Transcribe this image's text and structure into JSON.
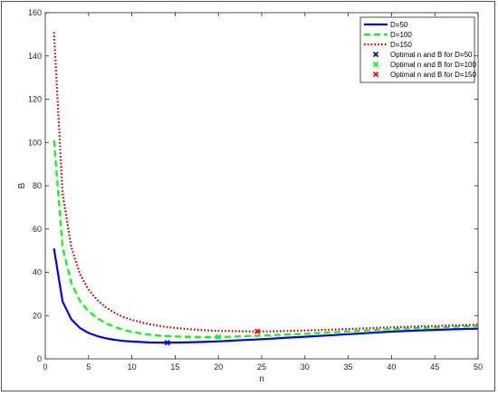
{
  "chart_data": {
    "type": "line",
    "xlabel": "n",
    "ylabel": "B",
    "xlim": [
      0,
      50
    ],
    "ylim": [
      0,
      160
    ],
    "xticks": [
      0,
      5,
      10,
      15,
      20,
      25,
      30,
      35,
      40,
      45,
      50
    ],
    "yticks": [
      0,
      20,
      40,
      60,
      80,
      100,
      120,
      140,
      160
    ],
    "grid": false,
    "legend_position": "top-right",
    "x": [
      1,
      2,
      3,
      4,
      5,
      6,
      7,
      8,
      9,
      10,
      12,
      14,
      16,
      18,
      20,
      22,
      24,
      26,
      28,
      30,
      35,
      40,
      45,
      50
    ],
    "series": [
      {
        "name": "D=50",
        "color": "#0000ff",
        "style": "solid",
        "values": [
          51,
          26.5,
          18.3,
          14.3,
          12,
          10.5,
          9.5,
          8.8,
          8.3,
          8,
          7.6,
          7.5,
          7.6,
          7.8,
          8.1,
          8.5,
          8.9,
          9.3,
          9.8,
          10.2,
          11.4,
          12.6,
          13.4,
          14
        ]
      },
      {
        "name": "D=100",
        "color": "#00ff00",
        "style": "dashed",
        "values": [
          101,
          51.5,
          35,
          26.8,
          22,
          18.8,
          16.5,
          14.8,
          13.5,
          12.5,
          11.2,
          10.5,
          10.2,
          10.1,
          10.1,
          10.3,
          10.6,
          10.9,
          11.3,
          11.6,
          12.7,
          13.8,
          14.5,
          15.2
        ]
      },
      {
        "name": "D=150",
        "color": "#cc0000",
        "style": "dotted",
        "values": [
          151,
          76.5,
          51.7,
          39.3,
          32,
          27.2,
          23.8,
          21.3,
          19.4,
          18,
          16,
          14.7,
          13.9,
          13.3,
          12.9,
          12.8,
          12.7,
          12.7,
          12.9,
          13.1,
          13.8,
          14.6,
          15.2,
          15.8
        ]
      }
    ],
    "optimal_points": [
      {
        "name": "Optimal n and B for D=50",
        "color": "#0000ff",
        "x": 14.1,
        "y": 7.5
      },
      {
        "name": "Optimal n and B for D=100",
        "color": "#00ff00",
        "x": 20,
        "y": 10.1
      },
      {
        "name": "Optimal n and B for D=150",
        "color": "#ff0000",
        "x": 24.5,
        "y": 12.7
      }
    ]
  }
}
